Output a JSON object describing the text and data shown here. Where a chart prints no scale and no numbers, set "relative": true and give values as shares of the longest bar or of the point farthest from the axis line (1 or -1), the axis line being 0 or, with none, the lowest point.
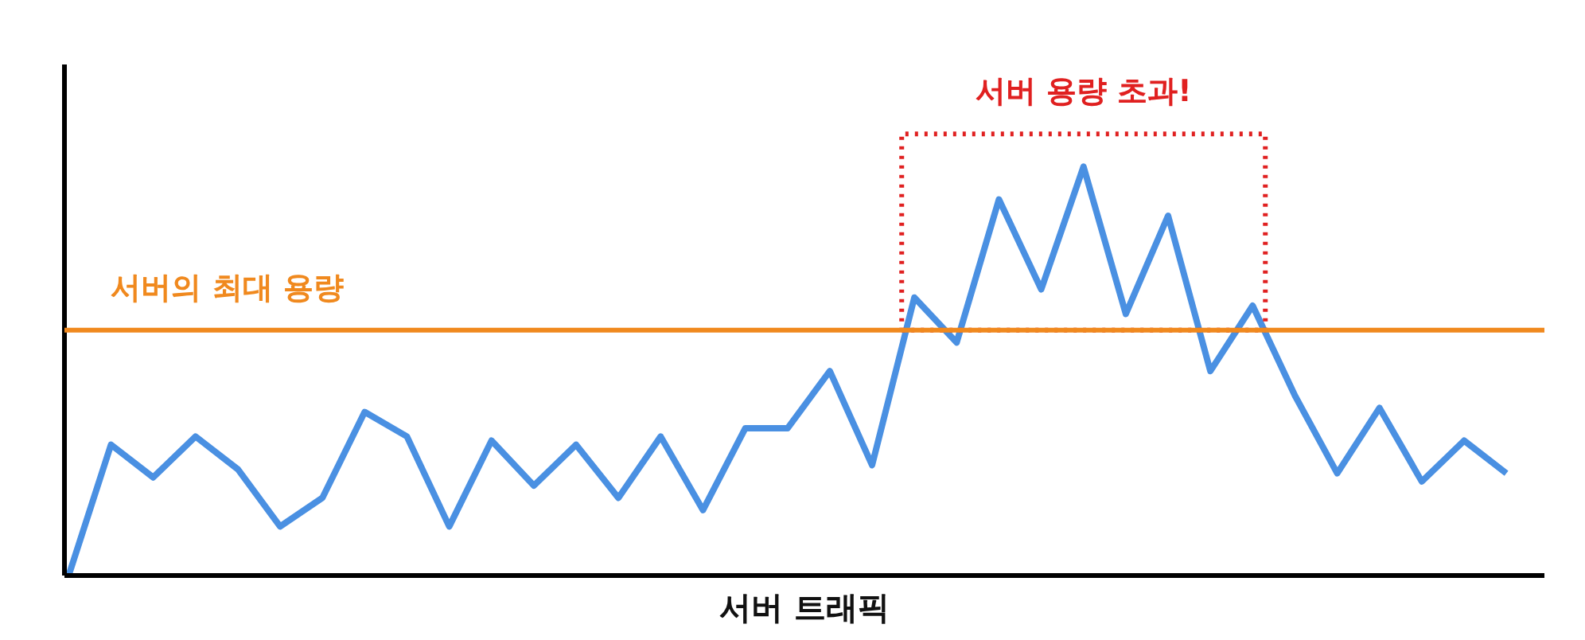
{
  "chart_data": {
    "type": "line",
    "relative": true,
    "xlabel": "서버 트래픽",
    "color": "#4a90e2",
    "marker": "none",
    "line_style": "solid",
    "grid": false,
    "categories": [
      null,
      null,
      null,
      null,
      null,
      null,
      null,
      null,
      null,
      null,
      null,
      null,
      null,
      null,
      null,
      null,
      null,
      null,
      null,
      null,
      null,
      null,
      null,
      null,
      null,
      null,
      null,
      null,
      null,
      null,
      null,
      null,
      null,
      null,
      null
    ],
    "values": [
      0,
      0.32,
      0.24,
      0.34,
      0.26,
      0.12,
      0.19,
      0.4,
      0.34,
      0.12,
      0.33,
      0.22,
      0.32,
      0.19,
      0.34,
      0.16,
      0.36,
      0.36,
      0.5,
      0.27,
      0.68,
      0.57,
      0.92,
      0.7,
      1,
      0.64,
      0.88,
      0.5,
      0.66,
      0.44,
      0.25,
      0.41,
      0.23,
      0.33,
      0.25
    ],
    "ref_lines": [
      {
        "axis": "y",
        "value": 0.6,
        "label": "서버의 최대 용량",
        "color": "#f0891e",
        "line_style": "solid"
      }
    ],
    "annotations": [
      "서버 용량 초과!"
    ]
  }
}
